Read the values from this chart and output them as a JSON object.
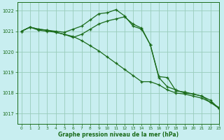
{
  "xlabel": "Graphe pression niveau de la mer (hPa)",
  "xlim": [
    -0.5,
    23
  ],
  "ylim": [
    1016.5,
    1022.4
  ],
  "yticks": [
    1017,
    1018,
    1019,
    1020,
    1021,
    1022
  ],
  "xticks": [
    0,
    1,
    2,
    3,
    4,
    5,
    6,
    7,
    8,
    9,
    10,
    11,
    12,
    13,
    14,
    15,
    16,
    17,
    18,
    19,
    20,
    21,
    22,
    23
  ],
  "bg_color": "#c8eef0",
  "grid_color": "#99ccbb",
  "line_color": "#1a6b1a",
  "line1": [
    1021.0,
    1021.2,
    1021.1,
    1021.05,
    1020.95,
    1020.85,
    1020.75,
    1020.55,
    1020.3,
    1020.05,
    1019.75,
    1019.45,
    1019.15,
    1018.85,
    1018.55,
    1018.55,
    1018.4,
    1018.15,
    1018.0,
    1017.95,
    1017.85,
    1017.75,
    1017.55,
    1017.3
  ],
  "line2": [
    1021.0,
    1021.2,
    1021.1,
    1021.05,
    1021.0,
    1020.95,
    1021.1,
    1021.25,
    1021.55,
    1021.85,
    1021.9,
    1022.05,
    1021.75,
    1021.25,
    1021.1,
    1020.35,
    1018.8,
    1018.75,
    1018.1,
    1018.05,
    1017.95,
    1017.85,
    1017.55,
    1017.25
  ],
  "line3": [
    1021.0,
    1021.2,
    1021.05,
    1021.0,
    1020.95,
    1020.85,
    1020.7,
    1020.85,
    1021.1,
    1021.35,
    1021.5,
    1021.6,
    1021.7,
    1021.35,
    1021.15,
    1020.35,
    1018.75,
    1018.3,
    1018.15,
    1018.0,
    1017.95,
    1017.85,
    1017.65,
    1017.25
  ]
}
